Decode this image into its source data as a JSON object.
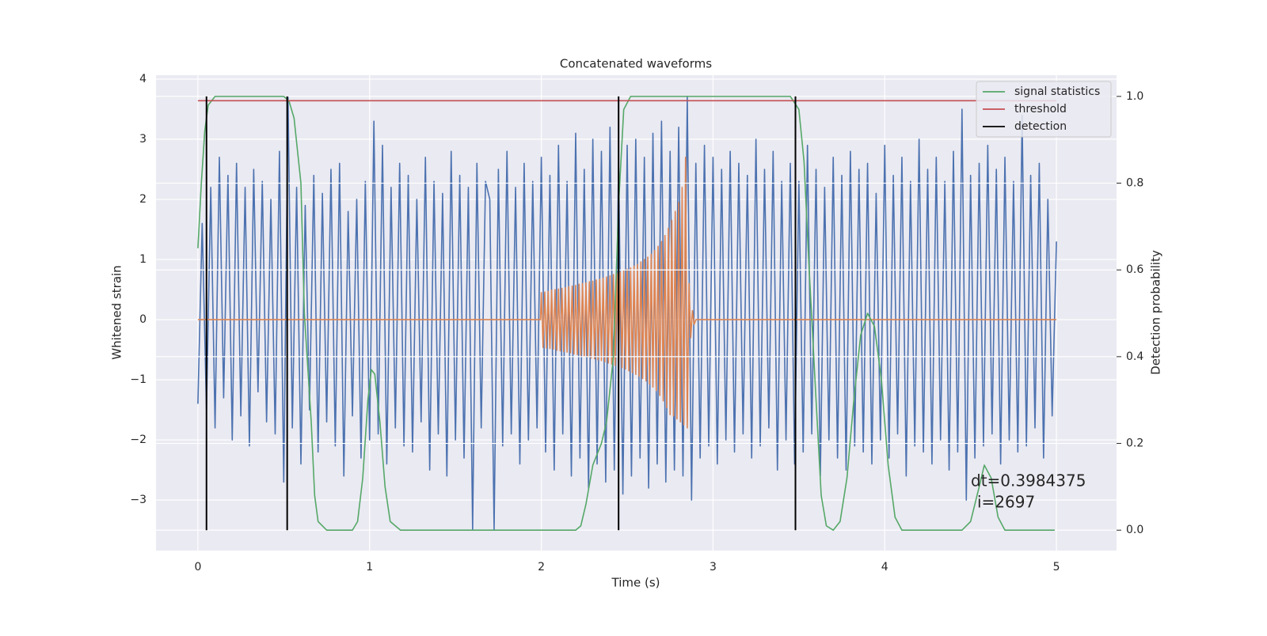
{
  "chart_data": {
    "type": "line",
    "title": "Concatenated waveforms",
    "x_label": "Time (s)",
    "y_label": "Whitened strain",
    "y2_label": "Detection probability",
    "xlim": [
      -0.244,
      5.35
    ],
    "ylim": [
      -3.84,
      4.066
    ],
    "y2lim": [
      -0.047,
      1.049
    ],
    "xticks": [
      0,
      1,
      2,
      3,
      4,
      5
    ],
    "yticks": [
      {
        "value": -3,
        "label": "−3"
      },
      {
        "value": -2,
        "label": "−2"
      },
      {
        "value": -1,
        "label": "−1"
      },
      0,
      1,
      2,
      3,
      4
    ],
    "y2ticks": [
      {
        "value": 0,
        "label": "0.0"
      },
      0.2,
      0.4,
      0.6,
      0.8,
      {
        "value": 1,
        "label": "1.0"
      }
    ],
    "grid": true,
    "legend": "upper right",
    "annotations": [
      "dt=0.3984375",
      "i=2697"
    ],
    "series": [
      {
        "color": "#4c72b0",
        "x": [
          0,
          0.025,
          0.05,
          0.075,
          0.1,
          0.125,
          0.15,
          0.175,
          0.2,
          0.225,
          0.25,
          0.275,
          0.3,
          0.325,
          0.35,
          0.375,
          0.4,
          0.425,
          0.45,
          0.475,
          0.5,
          0.525,
          0.55,
          0.575,
          0.6,
          0.625,
          0.65,
          0.675,
          0.7,
          0.725,
          0.75,
          0.775,
          0.8,
          0.825,
          0.85,
          0.875,
          0.9,
          0.925,
          0.95,
          0.975,
          1,
          1.025,
          1.05,
          1.075,
          1.1,
          1.125,
          1.15,
          1.175,
          1.2,
          1.225,
          1.25,
          1.275,
          1.3,
          1.325,
          1.35,
          1.375,
          1.4,
          1.425,
          1.45,
          1.475,
          1.5,
          1.525,
          1.55,
          1.575,
          1.6,
          1.625,
          1.65,
          1.675,
          1.7,
          1.725,
          1.75,
          1.775,
          1.8,
          1.825,
          1.85,
          1.875,
          1.9,
          1.925,
          1.95,
          1.975,
          2,
          2.025,
          2.05,
          2.075,
          2.1,
          2.125,
          2.15,
          2.175,
          2.2,
          2.225,
          2.25,
          2.275,
          2.3,
          2.325,
          2.35,
          2.375,
          2.4,
          2.425,
          2.45,
          2.475,
          2.5,
          2.525,
          2.55,
          2.575,
          2.6,
          2.625,
          2.65,
          2.675,
          2.7,
          2.725,
          2.75,
          2.775,
          2.8,
          2.825,
          2.85,
          2.875,
          2.9,
          2.925,
          2.95,
          2.975,
          3,
          3.025,
          3.05,
          3.075,
          3.1,
          3.125,
          3.15,
          3.175,
          3.2,
          3.225,
          3.25,
          3.275,
          3.3,
          3.325,
          3.35,
          3.375,
          3.4,
          3.425,
          3.45,
          3.475,
          3.5,
          3.525,
          3.55,
          3.575,
          3.6,
          3.625,
          3.65,
          3.675,
          3.7,
          3.725,
          3.75,
          3.775,
          3.8,
          3.825,
          3.85,
          3.875,
          3.9,
          3.925,
          3.95,
          3.975,
          4,
          4.025,
          4.05,
          4.075,
          4.1,
          4.125,
          4.15,
          4.175,
          4.2,
          4.225,
          4.25,
          4.275,
          4.3,
          4.325,
          4.35,
          4.375,
          4.4,
          4.425,
          4.45,
          4.475,
          4.5,
          4.525,
          4.55,
          4.575,
          4.6,
          4.625,
          4.65,
          4.675,
          4.7,
          4.725,
          4.75,
          4.775,
          4.8,
          4.825,
          4.85,
          4.875,
          4.9,
          4.925,
          4.95,
          4.975,
          5
        ],
        "values": [
          -1.4,
          1.6,
          -1.5,
          2.2,
          -1.8,
          2.7,
          -1.3,
          2.4,
          -2.0,
          2.6,
          -1.6,
          2.2,
          -2.1,
          2.5,
          -1.2,
          2.3,
          -1.7,
          2.0,
          -1.9,
          2.8,
          -2.7,
          3.7,
          -1.8,
          2.2,
          -2.4,
          1.9,
          -1.5,
          2.4,
          -2.2,
          2.1,
          -1.7,
          2.5,
          -2.1,
          2.6,
          -2.6,
          1.8,
          -1.6,
          2.0,
          -2.3,
          2.3,
          -2.0,
          3.3,
          -1.9,
          2.9,
          -2.4,
          2.2,
          -1.8,
          2.6,
          -2.1,
          2.4,
          -2.2,
          2.0,
          -1.7,
          2.7,
          -2.5,
          2.3,
          -1.9,
          2.1,
          -2.6,
          2.8,
          -2.0,
          2.4,
          -2.3,
          2.2,
          -3.5,
          2.6,
          -1.8,
          2.3,
          2.0,
          -3.5,
          2.5,
          -2.1,
          2.8,
          -1.9,
          2.2,
          -2.4,
          2.6,
          -2.0,
          2.3,
          -1.8,
          2.7,
          -2.2,
          2.4,
          -2.5,
          2.9,
          -1.9,
          2.3,
          -2.6,
          3.1,
          -2.3,
          2.5,
          -2.8,
          3.0,
          -2.4,
          2.8,
          -2.7,
          3.2,
          -2.5,
          2.6,
          -2.9,
          2.9,
          -2.6,
          3.0,
          -2.3,
          2.7,
          -2.8,
          3.1,
          -2.4,
          3.3,
          -2.7,
          2.8,
          -2.5,
          3.2,
          -2.6,
          3.7,
          -3.0,
          2.6,
          -2.3,
          2.9,
          -2.1,
          2.7,
          -2.4,
          2.5,
          -2.0,
          2.8,
          -2.2,
          2.6,
          -1.9,
          2.4,
          -2.3,
          3.0,
          -2.1,
          2.5,
          -1.8,
          2.8,
          -2.5,
          2.3,
          -2.0,
          2.6,
          -2.4,
          2.3,
          -2.2,
          2.9,
          -1.9,
          2.5,
          -2.6,
          2.2,
          -2.0,
          2.7,
          -2.3,
          2.4,
          -2.5,
          2.8,
          -2.1,
          2.5,
          -2.2,
          2.6,
          -2.4,
          2.1,
          -2.0,
          2.9,
          -2.3,
          2.4,
          -1.9,
          2.7,
          -2.6,
          2.3,
          -2.1,
          3.0,
          -2.2,
          2.5,
          -2.4,
          2.7,
          -2.0,
          2.3,
          -2.5,
          2.8,
          -2.2,
          3.5,
          -3.0,
          2.4,
          -2.3,
          2.6,
          -2.1,
          2.9,
          -1.9,
          2.5,
          -2.4,
          2.7,
          -2.0,
          2.3,
          -2.2,
          3.4,
          -2.1,
          2.4,
          -1.8,
          2.6,
          -2.3,
          2.0,
          -1.6,
          1.3
        ]
      },
      {
        "color": "#dd8452",
        "x": [
          0,
          1.995,
          2,
          2.01,
          2.02,
          2.03,
          2.04,
          2.05,
          2.06,
          2.07,
          2.08,
          2.09,
          2.1,
          2.11,
          2.12,
          2.13,
          2.14,
          2.15,
          2.16,
          2.17,
          2.18,
          2.19,
          2.2,
          2.21,
          2.22,
          2.23,
          2.24,
          2.25,
          2.26,
          2.27,
          2.28,
          2.29,
          2.3,
          2.31,
          2.32,
          2.33,
          2.34,
          2.35,
          2.36,
          2.37,
          2.38,
          2.39,
          2.4,
          2.41,
          2.42,
          2.43,
          2.44,
          2.45,
          2.46,
          2.47,
          2.48,
          2.49,
          2.5,
          2.51,
          2.52,
          2.53,
          2.54,
          2.55,
          2.56,
          2.57,
          2.58,
          2.59,
          2.6,
          2.61,
          2.62,
          2.63,
          2.64,
          2.65,
          2.66,
          2.67,
          2.68,
          2.69,
          2.7,
          2.71,
          2.72,
          2.73,
          2.74,
          2.75,
          2.76,
          2.77,
          2.78,
          2.79,
          2.8,
          2.81,
          2.82,
          2.83,
          2.84,
          2.85,
          2.86,
          2.87,
          2.88,
          2.89,
          2.9,
          5
        ],
        "values": [
          0,
          0,
          0.45,
          -0.46,
          0.46,
          -0.47,
          0.47,
          -0.48,
          0.49,
          -0.49,
          0.5,
          -0.51,
          0.51,
          -0.52,
          0.52,
          -0.53,
          0.53,
          -0.54,
          0.55,
          -0.55,
          0.56,
          -0.57,
          0.57,
          -0.58,
          0.59,
          -0.59,
          0.6,
          -0.61,
          0.61,
          -0.62,
          0.63,
          -0.64,
          0.64,
          -0.65,
          0.66,
          -0.67,
          0.67,
          -0.68,
          0.69,
          -0.7,
          0.71,
          -0.72,
          0.73,
          -0.74,
          0.75,
          -0.76,
          0.77,
          -0.78,
          0.79,
          -0.8,
          0.81,
          -0.82,
          0.84,
          -0.85,
          0.86,
          -0.88,
          0.89,
          -0.91,
          0.92,
          -0.94,
          0.96,
          -0.98,
          1.0,
          -1.02,
          1.04,
          -1.07,
          1.09,
          -1.12,
          1.15,
          -1.18,
          1.22,
          -1.26,
          1.3,
          -1.35,
          1.4,
          -1.46,
          1.52,
          -1.58,
          1.65,
          -1.6,
          1.8,
          -1.65,
          1.95,
          -1.7,
          2.2,
          -1.75,
          2.7,
          -1.8,
          0.6,
          -0.3,
          0.15,
          -0.08,
          0,
          0
        ]
      },
      {
        "name": "signal statistics",
        "color": "#55a868",
        "axis": "y2",
        "x": [
          0,
          0.02,
          0.04,
          0.06,
          0.1,
          0.2,
          0.5,
          0.53,
          0.56,
          0.6,
          0.62,
          0.66,
          0.68,
          0.7,
          0.75,
          0.9,
          0.93,
          0.96,
          0.99,
          1.01,
          1.03,
          1.06,
          1.09,
          1.12,
          1.18,
          2.2,
          2.23,
          2.26,
          2.3,
          2.35,
          2.38,
          2.42,
          2.45,
          2.48,
          2.52,
          3.45,
          3.5,
          3.53,
          3.56,
          3.6,
          3.63,
          3.66,
          3.7,
          3.74,
          3.78,
          3.82,
          3.86,
          3.9,
          3.94,
          3.98,
          4.02,
          4.06,
          4.1,
          4.45,
          4.5,
          4.55,
          4.58,
          4.62,
          4.66,
          4.7,
          4.99
        ],
        "values": [
          0.65,
          0.8,
          0.92,
          0.98,
          1.0,
          1.0,
          1.0,
          0.99,
          0.95,
          0.8,
          0.5,
          0.25,
          0.08,
          0.02,
          0.0,
          0.0,
          0.02,
          0.12,
          0.3,
          0.37,
          0.36,
          0.25,
          0.1,
          0.02,
          0.0,
          0.0,
          0.01,
          0.06,
          0.15,
          0.2,
          0.25,
          0.4,
          0.75,
          0.97,
          1.0,
          1.0,
          0.97,
          0.85,
          0.6,
          0.3,
          0.08,
          0.01,
          0.0,
          0.02,
          0.12,
          0.3,
          0.45,
          0.5,
          0.47,
          0.35,
          0.15,
          0.03,
          0.0,
          0.0,
          0.02,
          0.1,
          0.15,
          0.12,
          0.03,
          0.0,
          0.0
        ]
      },
      {
        "name": "threshold",
        "color": "#c44e52",
        "axis": "y2",
        "x": [
          0,
          5
        ],
        "values": [
          0.99,
          0.99
        ]
      },
      {
        "name": "detection",
        "color": "#000000",
        "axis": "y2",
        "type": "vlines",
        "x": [
          0.05,
          0.52,
          2.45,
          3.48
        ],
        "values": [
          1,
          1,
          1,
          1
        ]
      }
    ]
  }
}
